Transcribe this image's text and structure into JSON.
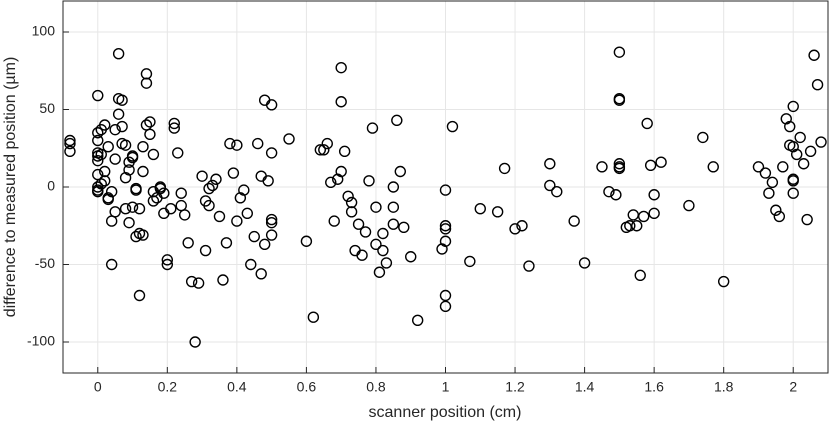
{
  "chart_data": {
    "type": "scatter",
    "xlabel": "scanner position (cm)",
    "ylabel": "difference to measured position (µm)",
    "xlim": [
      -0.1,
      2.1
    ],
    "ylim": [
      -120,
      120
    ],
    "xticks": [
      0,
      0.2,
      0.4,
      0.6,
      0.8,
      1,
      1.2,
      1.4,
      1.6,
      1.8,
      2
    ],
    "yticks": [
      -100,
      -50,
      0,
      50,
      100
    ],
    "grid": true,
    "color": "#000000",
    "x": [
      -0.08,
      -0.08,
      -0.08,
      0,
      0,
      0,
      0,
      0,
      0,
      0,
      0,
      0,
      0,
      0.01,
      0.01,
      0.01,
      0.02,
      0.02,
      0.02,
      0.03,
      0.03,
      0.03,
      0.04,
      0.04,
      0.04,
      0.05,
      0.05,
      0.05,
      0.06,
      0.06,
      0.06,
      0.07,
      0.07,
      0.07,
      0.08,
      0.08,
      0.08,
      0.09,
      0.09,
      0.09,
      0.1,
      0.1,
      0.1,
      0.11,
      0.11,
      0.11,
      0.12,
      0.12,
      0.12,
      0.13,
      0.13,
      0.13,
      0.14,
      0.14,
      0.14,
      0.15,
      0.15,
      0.16,
      0.16,
      0.16,
      0.17,
      0.18,
      0.18,
      0.19,
      0.19,
      0.2,
      0.2,
      0.21,
      0.22,
      0.22,
      0.23,
      0.24,
      0.24,
      0.25,
      0.26,
      0.27,
      0.28,
      0.29,
      0.3,
      0.31,
      0.31,
      0.32,
      0.32,
      0.33,
      0.34,
      0.35,
      0.36,
      0.37,
      0.38,
      0.39,
      0.4,
      0.4,
      0.41,
      0.42,
      0.43,
      0.44,
      0.45,
      0.46,
      0.47,
      0.47,
      0.48,
      0.48,
      0.49,
      0.5,
      0.5,
      0.5,
      0.5,
      0.5,
      0.55,
      0.6,
      0.62,
      0.64,
      0.65,
      0.66,
      0.67,
      0.68,
      0.69,
      0.7,
      0.7,
      0.7,
      0.71,
      0.72,
      0.73,
      0.73,
      0.74,
      0.75,
      0.76,
      0.77,
      0.78,
      0.79,
      0.8,
      0.8,
      0.81,
      0.82,
      0.82,
      0.83,
      0.85,
      0.85,
      0.85,
      0.86,
      0.87,
      0.88,
      0.9,
      0.92,
      0.99,
      1,
      1,
      1,
      1,
      1,
      1,
      1.02,
      1.07,
      1.1,
      1.15,
      1.17,
      1.2,
      1.22,
      1.24,
      1.3,
      1.3,
      1.32,
      1.37,
      1.4,
      1.45,
      1.47,
      1.49,
      1.5,
      1.5,
      1.5,
      1.5,
      1.5,
      1.5,
      1.52,
      1.53,
      1.54,
      1.55,
      1.56,
      1.57,
      1.58,
      1.59,
      1.6,
      1.6,
      1.62,
      1.7,
      1.74,
      1.77,
      1.8,
      1.9,
      1.92,
      1.93,
      1.94,
      1.95,
      1.96,
      1.97,
      1.98,
      1.99,
      1.99,
      2,
      2,
      2,
      2,
      2,
      2.01,
      2.02,
      2.03,
      2.04,
      2.05,
      2.06,
      2.07,
      2.08
    ],
    "values": [
      30,
      28,
      23,
      59,
      35,
      30,
      22,
      20,
      17,
      8,
      0,
      -2,
      -3,
      37,
      21,
      2,
      40,
      4,
      10,
      -7,
      -8,
      26,
      -3,
      -22,
      -50,
      18,
      -16,
      37,
      86,
      57,
      47,
      56,
      39,
      28,
      27,
      6,
      -14,
      16,
      11,
      -23,
      20,
      19,
      -13,
      -1,
      -2,
      -32,
      -14,
      -30,
      -70,
      26,
      10,
      -31,
      73,
      67,
      40,
      42,
      34,
      21,
      -3,
      -9,
      -7,
      0,
      -1,
      -17,
      -4,
      -47,
      -50,
      -14,
      41,
      38,
      22,
      -4,
      -12,
      -18,
      -36,
      -61,
      -100,
      -62,
      7,
      -9,
      -41,
      -12,
      -1,
      1,
      5,
      -19,
      -60,
      -36,
      28,
      9,
      27,
      -22,
      -7,
      -2,
      -17,
      -50,
      -32,
      28,
      7,
      -56,
      56,
      -37,
      4,
      53,
      22,
      -21,
      -23,
      -31,
      31,
      -35,
      -84,
      24,
      24,
      28,
      3,
      -22,
      5,
      77,
      55,
      10,
      23,
      -6,
      -10,
      -16,
      -41,
      -24,
      -44,
      -29,
      4,
      38,
      -13,
      -37,
      -55,
      -30,
      -41,
      -49,
      -13,
      -24,
      0,
      43,
      10,
      -26,
      -45,
      -86,
      -40,
      -2,
      -25,
      -27,
      -35,
      -70,
      -77,
      39,
      -48,
      -14,
      -16,
      12,
      -27,
      -25,
      -51,
      15,
      1,
      -3,
      -22,
      -49,
      13,
      -3,
      -5,
      87,
      57,
      56,
      15,
      13,
      12,
      -26,
      -25,
      -18,
      -25,
      -57,
      -19,
      41,
      14,
      -5,
      -17,
      16,
      -12,
      32,
      13,
      -61,
      13,
      9,
      -4,
      3,
      -15,
      -19,
      13,
      44,
      39,
      27,
      52,
      26,
      5,
      4,
      -4,
      21,
      32,
      15,
      -21,
      23,
      85,
      66,
      29
    ]
  }
}
